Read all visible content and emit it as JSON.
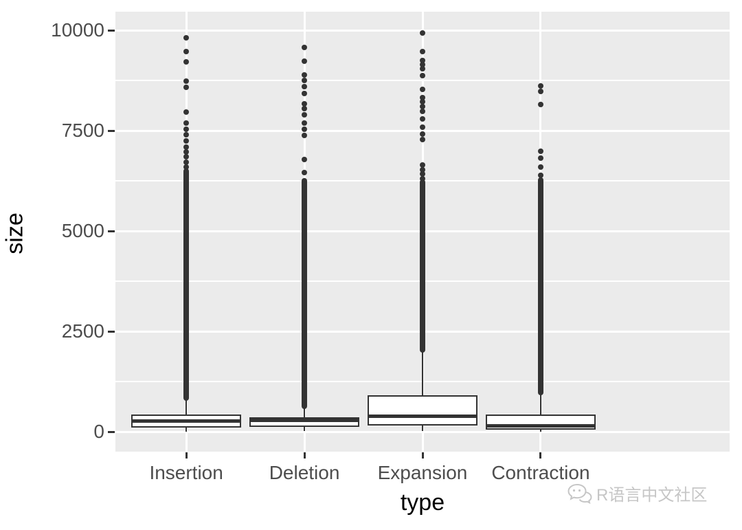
{
  "watermark": {
    "text": "R语言中文社区",
    "icon": "wechat-chat-bubbles",
    "color": "#C6C6C6"
  },
  "chart_data": {
    "type": "boxplot",
    "title": "",
    "xlabel": "type",
    "ylabel": "size",
    "categories": [
      "Insertion",
      "Deletion",
      "Expansion",
      "Contraction"
    ],
    "y_ticks": [
      0,
      2500,
      5000,
      7500,
      10000
    ],
    "y_minor_ticks": [
      1250,
      3750,
      6250,
      8750
    ],
    "ylim": [
      -490,
      10470
    ],
    "grid": "on",
    "legend": "none",
    "panel_style": "ggplot-grey",
    "boxes": [
      {
        "category": "Insertion",
        "lower_whisker": 10,
        "q1": 110,
        "median": 280,
        "q3": 430,
        "upper_whisker": 800,
        "outlier_solid_range": [
          840,
          6500
        ],
        "outlier_dots": [
          6600,
          6720,
          6850,
          6980,
          7100,
          7250,
          7400,
          7550,
          7700,
          7970,
          8590,
          8740,
          9215,
          9470,
          9815
        ]
      },
      {
        "category": "Deletion",
        "lower_whisker": 20,
        "q1": 120,
        "median": 290,
        "q3": 360,
        "upper_whisker": 610,
        "outlier_solid_range": [
          640,
          6250
        ],
        "outlier_dots": [
          6470,
          6780,
          7380,
          7550,
          7700,
          7900,
          8050,
          8180,
          8440,
          8600,
          8750,
          8900,
          9240,
          9580
        ]
      },
      {
        "category": "Expansion",
        "lower_whisker": 30,
        "q1": 155,
        "median": 385,
        "q3": 920,
        "upper_whisker": 2000,
        "outlier_solid_range": [
          2050,
          6220
        ],
        "outlier_dots": [
          6310,
          6420,
          6530,
          6650,
          7280,
          7420,
          7600,
          7800,
          7990,
          8110,
          8230,
          8330,
          8530,
          8880,
          9050,
          9150,
          9250,
          9470,
          9940
        ]
      },
      {
        "category": "Contraction",
        "lower_whisker": 10,
        "q1": 60,
        "median": 145,
        "q3": 430,
        "upper_whisker": 950,
        "outlier_solid_range": [
          990,
          6280
        ],
        "outlier_dots": [
          6400,
          6600,
          6830,
          6990,
          8160,
          8480,
          8620
        ]
      }
    ],
    "colors": {
      "panel_bg": "#EBEBEB",
      "grid": "#FFFFFF",
      "box_fill": "#FFFFFF",
      "box_stroke": "#333333",
      "outlier": "#333333",
      "tick_text": "#4D4D4D",
      "axis_title_text": "#000000"
    }
  }
}
